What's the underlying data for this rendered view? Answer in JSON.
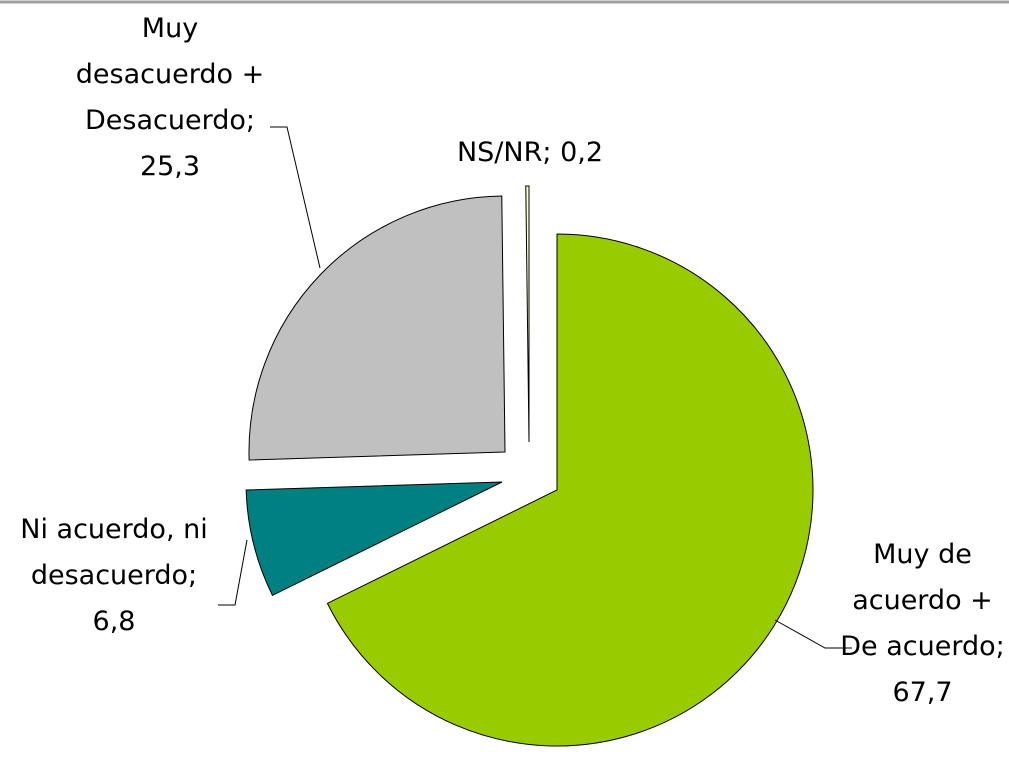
{
  "chart_data": {
    "type": "pie",
    "categories": [
      "Muy de acuerdo + De acuerdo",
      "Ni acuerdo, ni desacuerdo",
      "Muy desacuerdo + Desacuerdo",
      "NS/NR"
    ],
    "values": [
      67.7,
      6.8,
      25.3,
      0.2
    ],
    "value_labels": [
      "67,7",
      "6,8",
      "25,3",
      "0,2"
    ],
    "separator": ";",
    "colors": [
      "#99cc00",
      "#008080",
      "#c0c0c0",
      "#ffffcc"
    ]
  }
}
